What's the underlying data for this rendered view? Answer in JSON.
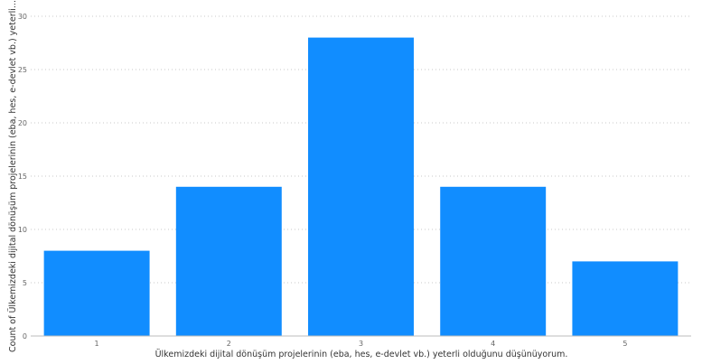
{
  "chart_data": {
    "type": "bar",
    "categories": [
      "1",
      "2",
      "3",
      "4",
      "5"
    ],
    "values": [
      8,
      14,
      28,
      14,
      7
    ],
    "title": "",
    "xlabel": "Ülkemizdeki dijital dönüşüm projelerinin (eba, hes, e-devlet vb.) yeterli olduğunu düşünüyorum.",
    "ylabel": "Count of Ülkemizdeki dijital dönüşüm projelerinin (eba, hes, e-devlet vb.) yeterli...",
    "ylim": [
      0,
      30
    ],
    "yticks": [
      0,
      5,
      10,
      15,
      20,
      25,
      30
    ],
    "grid": true,
    "legend": "none",
    "bar_color": "#118DFF"
  }
}
